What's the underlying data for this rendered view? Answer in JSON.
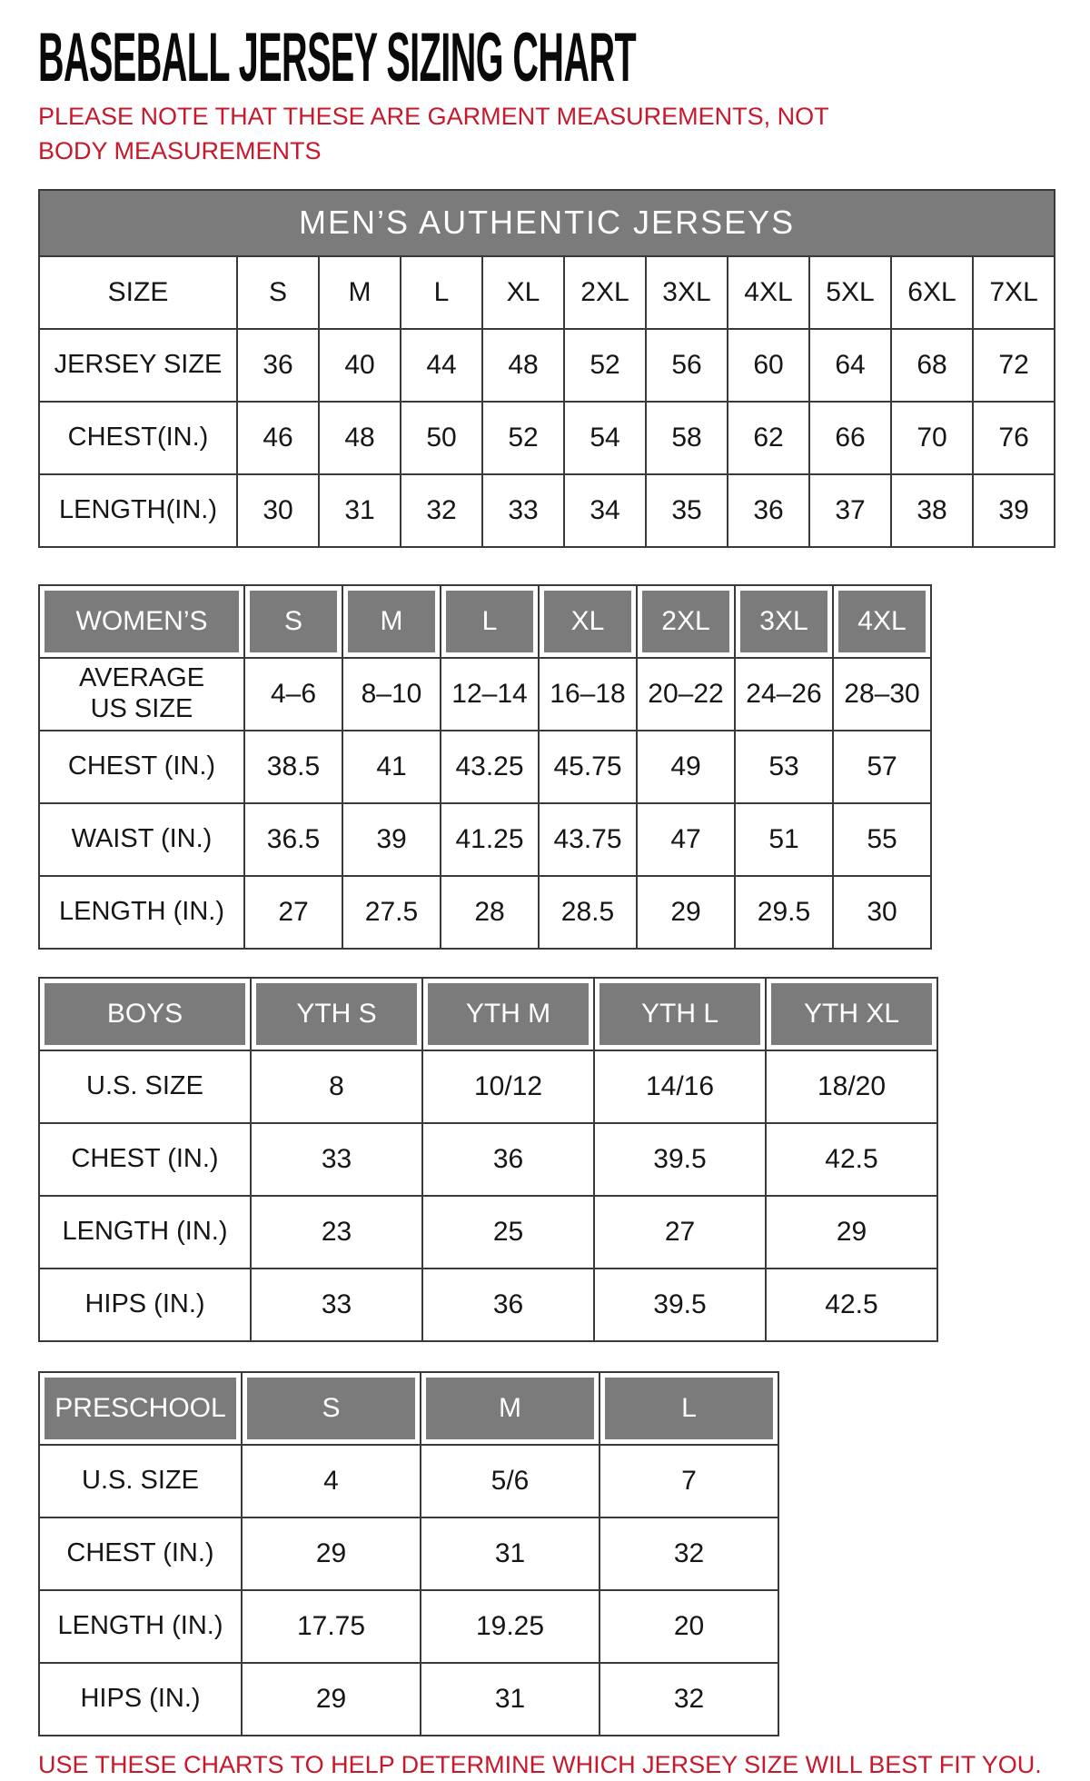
{
  "page": {
    "title": "BASEBALL JERSEY SIZING CHART",
    "note": "PLEASE NOTE THAT THESE ARE GARMENT MEASUREMENTS, NOT BODY MEASUREMENTS",
    "footer": "USE THESE CHARTS TO HELP DETERMINE WHICH JERSEY SIZE WILL BEST FIT YOU.",
    "colors": {
      "accent_red": "#c8182b",
      "header_gray": "#7b7b7b",
      "grid_border": "#3a3a3a"
    }
  },
  "tables": [
    {
      "id": "mens",
      "title_bar": "MEN’S AUTHENTIC JERSEYS",
      "corner_label": "SIZE",
      "columns": [
        "S",
        "M",
        "L",
        "XL",
        "2XL",
        "3XL",
        "4XL",
        "5XL",
        "6XL",
        "7XL"
      ],
      "rows": [
        {
          "label": "JERSEY SIZE",
          "values": [
            "36",
            "40",
            "44",
            "48",
            "52",
            "56",
            "60",
            "64",
            "68",
            "72"
          ]
        },
        {
          "label": "CHEST(IN.)",
          "values": [
            "46",
            "48",
            "50",
            "52",
            "54",
            "58",
            "62",
            "66",
            "70",
            "76"
          ]
        },
        {
          "label": "LENGTH(IN.)",
          "values": [
            "30",
            "31",
            "32",
            "33",
            "34",
            "35",
            "36",
            "37",
            "38",
            "39"
          ]
        }
      ]
    },
    {
      "id": "womens",
      "corner_label": "WOMEN’S",
      "columns": [
        "S",
        "M",
        "L",
        "XL",
        "2XL",
        "3XL",
        "4XL"
      ],
      "rows": [
        {
          "label": "AVERAGE\nUS SIZE",
          "values": [
            "4–6",
            "8–10",
            "12–14",
            "16–18",
            "20–22",
            "24–26",
            "28–30"
          ]
        },
        {
          "label": "CHEST (IN.)",
          "values": [
            "38.5",
            "41",
            "43.25",
            "45.75",
            "49",
            "53",
            "57"
          ]
        },
        {
          "label": "WAIST (IN.)",
          "values": [
            "36.5",
            "39",
            "41.25",
            "43.75",
            "47",
            "51",
            "55"
          ]
        },
        {
          "label": "LENGTH (IN.)",
          "values": [
            "27",
            "27.5",
            "28",
            "28.5",
            "29",
            "29.5",
            "30"
          ]
        }
      ]
    },
    {
      "id": "boys",
      "corner_label": "BOYS",
      "columns": [
        "YTH S",
        "YTH M",
        "YTH L",
        "YTH XL"
      ],
      "rows": [
        {
          "label": "U.S. SIZE",
          "values": [
            "8",
            "10/12",
            "14/16",
            "18/20"
          ]
        },
        {
          "label": "CHEST (IN.)",
          "values": [
            "33",
            "36",
            "39.5",
            "42.5"
          ]
        },
        {
          "label": "LENGTH (IN.)",
          "values": [
            "23",
            "25",
            "27",
            "29"
          ]
        },
        {
          "label": "HIPS (IN.)",
          "values": [
            "33",
            "36",
            "39.5",
            "42.5"
          ]
        }
      ]
    },
    {
      "id": "preschool",
      "corner_label": "PRESCHOOL",
      "columns": [
        "S",
        "M",
        "L"
      ],
      "rows": [
        {
          "label": "U.S. SIZE",
          "values": [
            "4",
            "5/6",
            "7"
          ]
        },
        {
          "label": "CHEST (IN.)",
          "values": [
            "29",
            "31",
            "32"
          ]
        },
        {
          "label": "LENGTH (IN.)",
          "values": [
            "17.75",
            "19.25",
            "20"
          ]
        },
        {
          "label": "HIPS (IN.)",
          "values": [
            "29",
            "31",
            "32"
          ]
        }
      ]
    }
  ]
}
